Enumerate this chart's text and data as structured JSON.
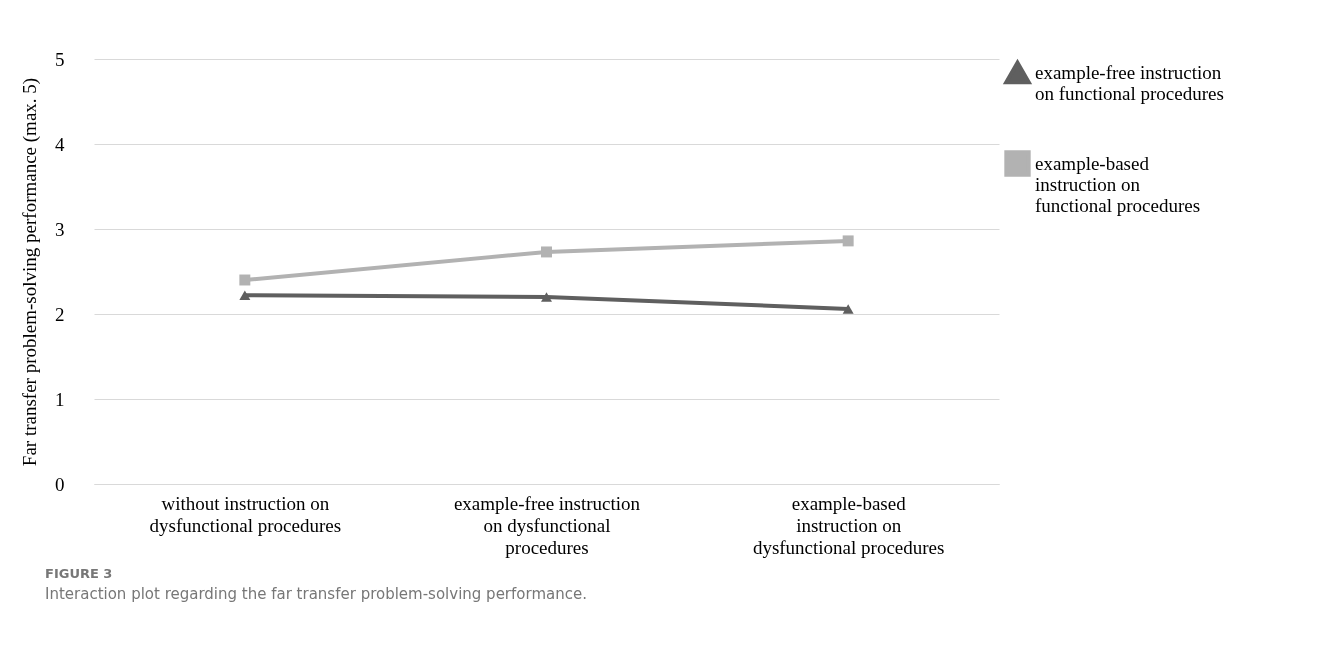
{
  "chart_data": {
    "type": "line",
    "ylabel": "Far transfer problem-solving performance (max. 5)",
    "categories": [
      "without instruction on dysfunctional procedures",
      "example-free instruction on dysfunctional procedures",
      "example-based instruction on dysfunctional procedures"
    ],
    "series": [
      {
        "name": "example-free instruction on functional procedures",
        "color": "#5f5f5f",
        "marker": "triangle",
        "values": [
          2.22,
          2.2,
          2.06
        ]
      },
      {
        "name": "example-based instruction on functional procedures",
        "color": "#b2b2b2",
        "marker": "square",
        "values": [
          2.4,
          2.73,
          2.86
        ]
      }
    ],
    "ylim": [
      0,
      5
    ],
    "yticks": [
      0,
      1,
      2,
      3,
      4,
      5
    ],
    "grid": "y",
    "legend": "right",
    "annotations": [
      "FIGURE 3",
      "Interaction plot regarding the far transfer problem-solving performance."
    ]
  }
}
